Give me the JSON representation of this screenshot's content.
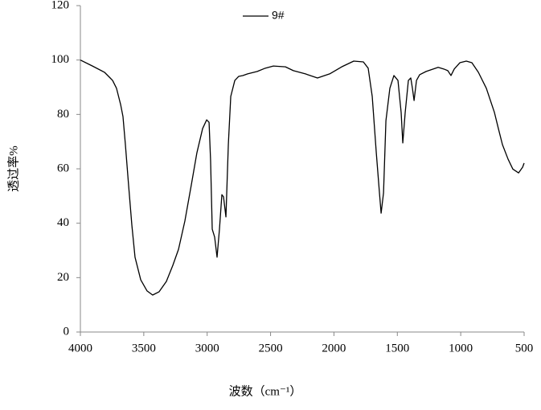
{
  "chart_data": {
    "type": "line",
    "x_label": "波数（cm⁻¹）",
    "y_label": "透过率%",
    "x": [
      4000,
      3905,
      3810,
      3765,
      3746,
      3715,
      3683,
      3664,
      3645,
      3620,
      3594,
      3569,
      3524,
      3474,
      3430,
      3379,
      3322,
      3271,
      3226,
      3176,
      3125,
      3081,
      3036,
      3004,
      2985,
      2973,
      2960,
      2941,
      2922,
      2903,
      2884,
      2871,
      2852,
      2833,
      2814,
      2782,
      2751,
      2719,
      2681,
      2605,
      2542,
      2478,
      2383,
      2320,
      2225,
      2130,
      2034,
      1939,
      1844,
      1768,
      1730,
      1698,
      1666,
      1641,
      1628,
      1609,
      1590,
      1559,
      1527,
      1495,
      1470,
      1457,
      1438,
      1413,
      1394,
      1381,
      1368,
      1349,
      1324,
      1273,
      1178,
      1134,
      1102,
      1077,
      1051,
      1007,
      956,
      912,
      861,
      798,
      734,
      703,
      671,
      627,
      589,
      544,
      512,
      500
    ],
    "series": [
      {
        "name": "9#",
        "color": "#000000",
        "values": [
          100,
          97.8,
          95.5,
          93.4,
          92.5,
          89.6,
          83.7,
          79.2,
          68.9,
          54.1,
          39.3,
          27.5,
          19.2,
          15.1,
          13.6,
          14.8,
          18.6,
          24.5,
          30.4,
          40.8,
          54.1,
          65.9,
          74.8,
          78.0,
          77.1,
          63.0,
          37.8,
          34.9,
          27.5,
          37.8,
          50.5,
          49.7,
          42.3,
          68.9,
          86.6,
          92.5,
          94.0,
          94.3,
          94.9,
          95.8,
          97.0,
          97.8,
          97.5,
          96.1,
          94.9,
          93.4,
          94.9,
          97.5,
          99.6,
          99.3,
          97.0,
          86.6,
          65.9,
          51.1,
          43.7,
          51.1,
          77.7,
          89.6,
          94.3,
          92.5,
          80.7,
          69.5,
          80.7,
          92.5,
          93.4,
          89.6,
          85.1,
          92.5,
          94.6,
          95.8,
          97.3,
          96.7,
          96.1,
          94.3,
          96.7,
          99.0,
          99.6,
          99.0,
          95.5,
          89.6,
          80.7,
          74.8,
          68.9,
          63.6,
          59.9,
          58.5,
          60.6,
          62.1
        ]
      }
    ],
    "xlim": [
      4000,
      500
    ],
    "xticks": [
      4000,
      3500,
      3000,
      2500,
      2000,
      1500,
      1000,
      500
    ],
    "ylim": [
      0,
      120
    ],
    "yticks": [
      0,
      20,
      40,
      60,
      80,
      100,
      120
    ],
    "grid": false,
    "legend": "top"
  }
}
